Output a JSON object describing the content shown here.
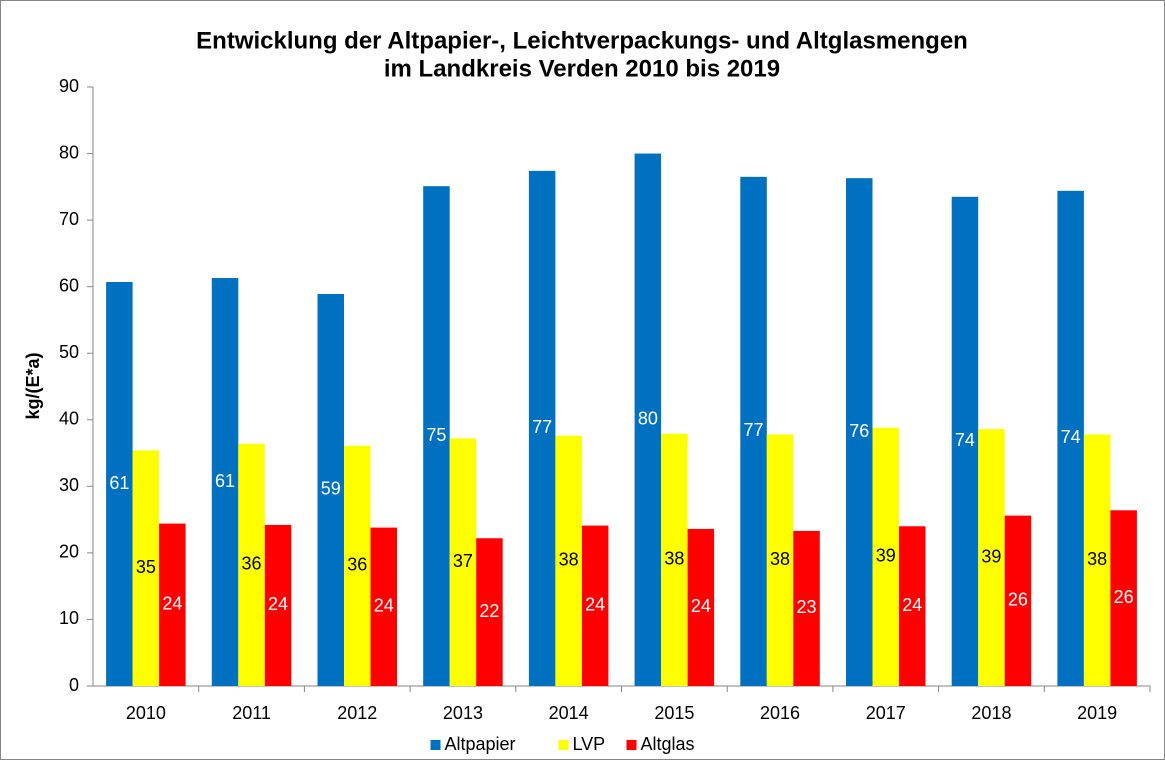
{
  "chart_data": {
    "type": "bar",
    "title": [
      "Entwicklung der Altpapier-, Leichtverpackungs- und Altglasmengen",
      "im Landkreis Verden 2010 bis 2019"
    ],
    "y_label": "kg/(E*a)",
    "categories": [
      "2010",
      "2011",
      "2012",
      "2013",
      "2014",
      "2015",
      "2016",
      "2017",
      "2018",
      "2019"
    ],
    "series": [
      {
        "name": "Altpapier",
        "color": "#0070c0",
        "label_color": "#ffffff",
        "values": [
          60.7,
          61.3,
          58.9,
          75.1,
          77.4,
          80.0,
          76.5,
          76.3,
          73.5,
          74.4
        ],
        "value_labels": [
          "61",
          "61",
          "59",
          "75",
          "77",
          "80",
          "77",
          "76",
          "74",
          "74"
        ]
      },
      {
        "name": "LVP",
        "color": "#ffff00",
        "label_color": "#000000",
        "values": [
          35.4,
          36.4,
          36.1,
          37.2,
          37.6,
          37.9,
          37.8,
          38.8,
          38.6,
          37.8
        ],
        "value_labels": [
          "35",
          "36",
          "36",
          "37",
          "38",
          "38",
          "38",
          "39",
          "39",
          "38"
        ]
      },
      {
        "name": "Altglas",
        "color": "#ff0000",
        "label_color": "#ffffff",
        "values": [
          24.4,
          24.2,
          23.8,
          22.2,
          24.1,
          23.6,
          23.3,
          24.0,
          25.6,
          26.4
        ],
        "value_labels": [
          "24",
          "24",
          "24",
          "22",
          "24",
          "24",
          "23",
          "24",
          "26",
          "26"
        ]
      }
    ],
    "ylim": [
      0,
      90
    ],
    "yticks": [
      0,
      10,
      20,
      30,
      40,
      50,
      60,
      70,
      80,
      90
    ],
    "grid": false,
    "legend": "bottom"
  }
}
